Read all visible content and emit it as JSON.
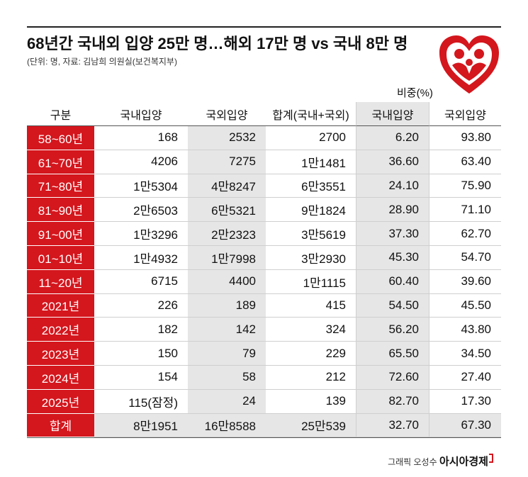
{
  "header": {
    "title": "68년간 국내외 입양 25만 명…해외 17만 명 vs 국내 8만 명",
    "note": "(단위: 명, 자료: 김남희 의원실(보건복지부)",
    "ratio_label": "비중(%)"
  },
  "table": {
    "columns": [
      "구분",
      "국내입양",
      "국외입양",
      "합계(국내+국외)",
      "국내입양",
      "국외입양"
    ],
    "rows": [
      [
        "58~60년",
        "168",
        "2532",
        "2700",
        "6.20",
        "93.80"
      ],
      [
        "61~70년",
        "4206",
        "7275",
        "1만1481",
        "36.60",
        "63.40"
      ],
      [
        "71~80년",
        "1만5304",
        "4만8247",
        "6만3551",
        "24.10",
        "75.90"
      ],
      [
        "81~90년",
        "2만6503",
        "6만5321",
        "9만1824",
        "28.90",
        "71.10"
      ],
      [
        "91~00년",
        "1만3296",
        "2만2323",
        "3만5619",
        "37.30",
        "62.70"
      ],
      [
        "01~10년",
        "1만4932",
        "1만7998",
        "3만2930",
        "45.30",
        "54.70"
      ],
      [
        "11~20년",
        "6715",
        "4400",
        "1만1115",
        "60.40",
        "39.60"
      ],
      [
        "2021년",
        "226",
        "189",
        "415",
        "54.50",
        "45.50"
      ],
      [
        "2022년",
        "182",
        "142",
        "324",
        "56.20",
        "43.80"
      ],
      [
        "2023년",
        "150",
        "79",
        "229",
        "65.50",
        "34.50"
      ],
      [
        "2024년",
        "154",
        "58",
        "212",
        "72.60",
        "27.40"
      ],
      [
        "2025년",
        "115(잠정)",
        "24",
        "139",
        "82.70",
        "17.30"
      ],
      [
        "합계",
        "8만1951",
        "16만8588",
        "25만539",
        "32.70",
        "67.30"
      ]
    ]
  },
  "footer": {
    "credit": "그래픽 오성수",
    "brand": "아시아경제"
  }
}
